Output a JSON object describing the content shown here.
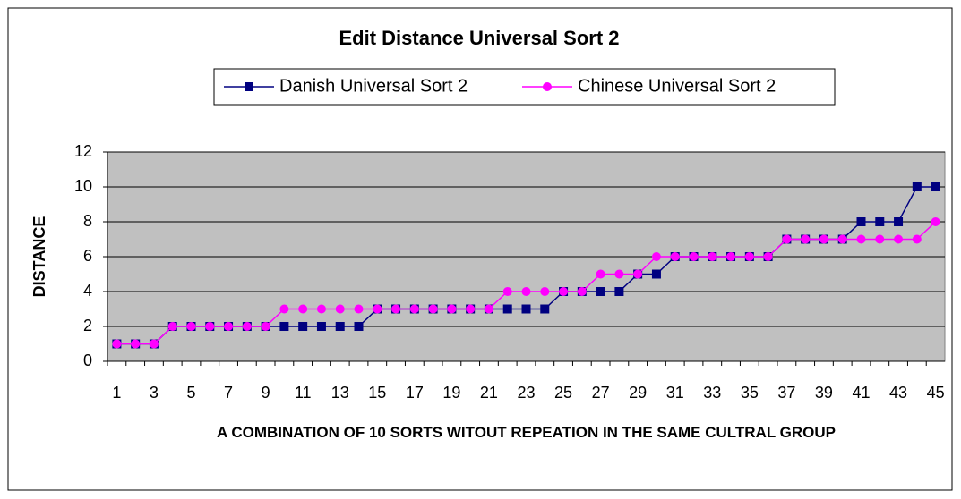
{
  "chart_data": {
    "type": "line",
    "title": "Edit Distance Universal Sort 2",
    "x_label": "A COMBINATION OF 10 SORTS WITOUT REPEATION IN THE SAME CULTRAL GROUP",
    "y_label": "DISTANCE",
    "categories": [
      1,
      null,
      3,
      null,
      5,
      null,
      7,
      null,
      9,
      null,
      11,
      null,
      13,
      null,
      15,
      null,
      17,
      null,
      19,
      null,
      21,
      null,
      23,
      null,
      25,
      null,
      27,
      null,
      29,
      null,
      31,
      null,
      33,
      null,
      35,
      null,
      37,
      null,
      39,
      null,
      41,
      null,
      43,
      null,
      45
    ],
    "series": [
      {
        "name": "Danish Universal Sort 2",
        "color": "#000080",
        "marker": "square",
        "values": [
          1,
          1,
          1,
          2,
          2,
          2,
          2,
          2,
          2,
          2,
          2,
          2,
          2,
          2,
          3,
          3,
          3,
          3,
          3,
          3,
          3,
          3,
          3,
          3,
          4,
          4,
          4,
          4,
          5,
          5,
          6,
          6,
          6,
          6,
          6,
          6,
          7,
          7,
          7,
          7,
          8,
          8,
          8,
          10,
          10
        ]
      },
      {
        "name": "Chinese Universal Sort 2",
        "color": "#ff00ff",
        "marker": "circle",
        "values": [
          1,
          1,
          1,
          2,
          2,
          2,
          2,
          2,
          2,
          3,
          3,
          3,
          3,
          3,
          3,
          3,
          3,
          3,
          3,
          3,
          3,
          4,
          4,
          4,
          4,
          4,
          5,
          5,
          5,
          6,
          6,
          6,
          6,
          6,
          6,
          6,
          7,
          7,
          7,
          7,
          7,
          7,
          7,
          7,
          8
        ]
      }
    ],
    "ylim": [
      0,
      12
    ],
    "yticks": [
      0,
      2,
      4,
      6,
      8,
      10,
      12
    ],
    "grid": true,
    "legend": "top"
  }
}
